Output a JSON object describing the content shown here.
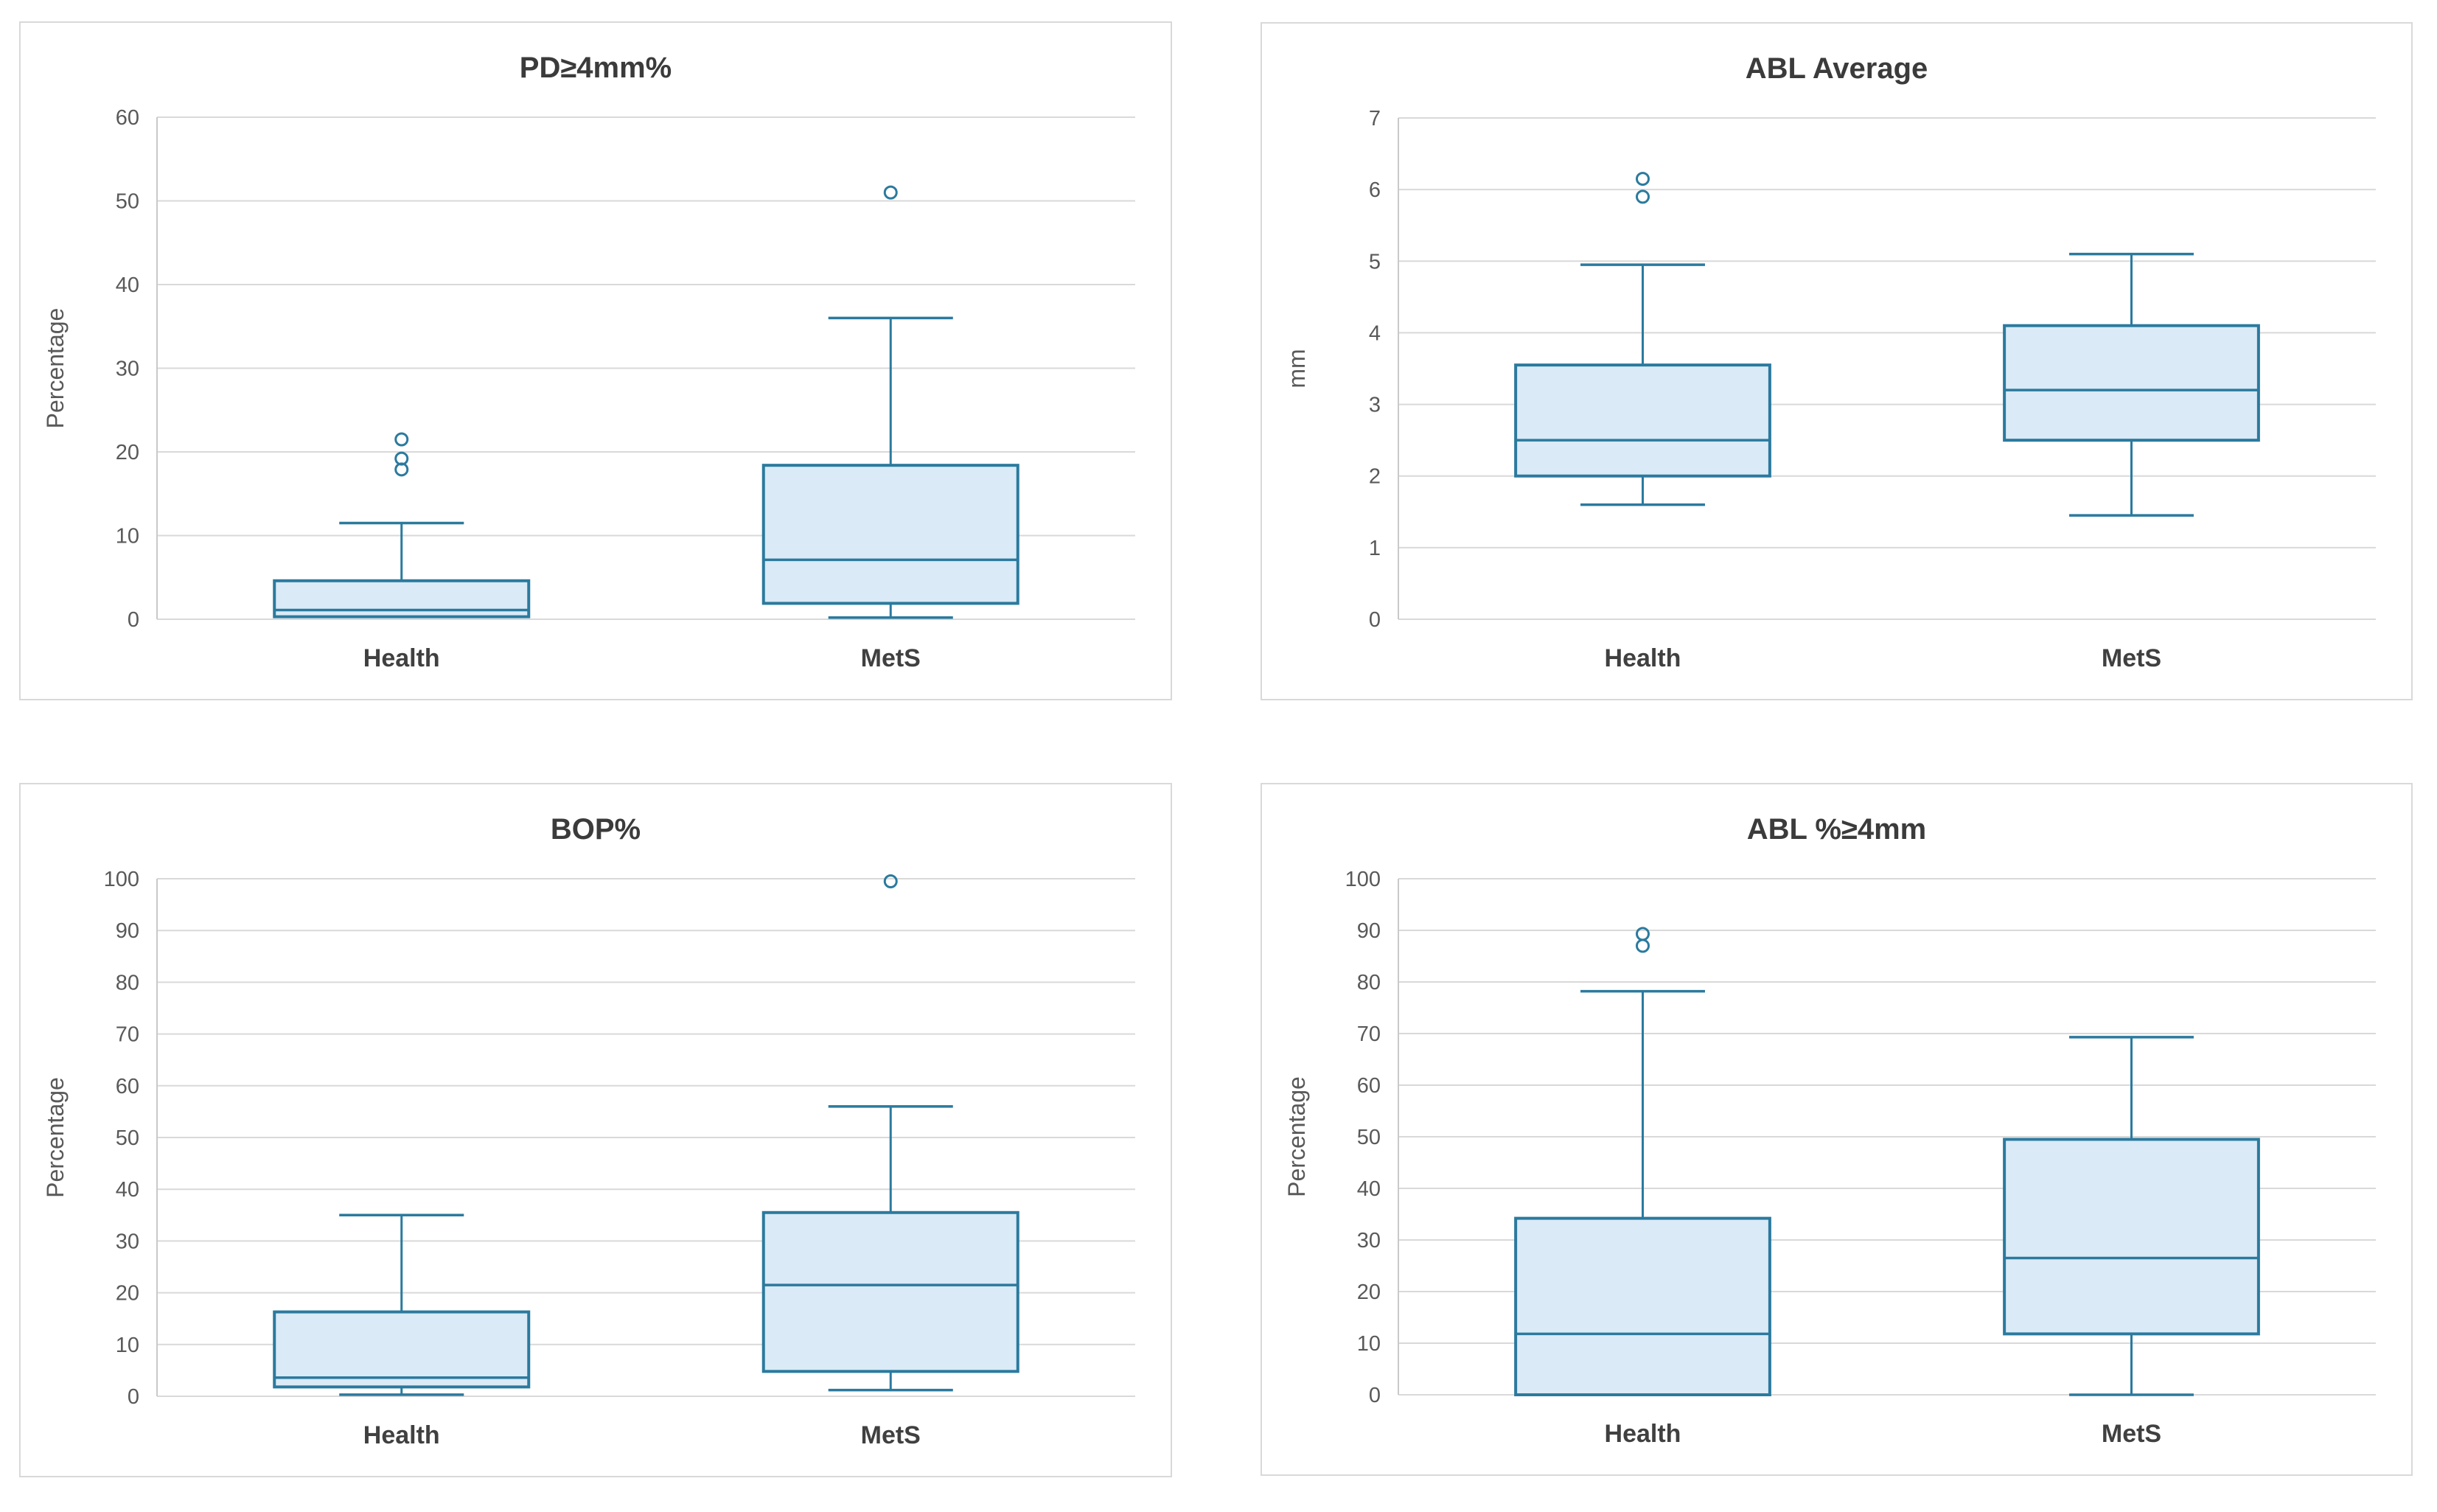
{
  "style": {
    "box_fill": "#daeaf6",
    "box_stroke": "#2b7a9e",
    "grid_color": "#d9d9d9",
    "axis_color": "#c9c9c9",
    "title_color": "#3b3b3b",
    "tick_color": "#595959",
    "category_color": "#404040",
    "background": "#ffffff"
  },
  "chart_data": [
    {
      "type": "box",
      "title": "PD≥4mm%",
      "ylabel": "Percentage",
      "xlabel": "",
      "ylim": [
        0,
        60
      ],
      "y_step": 10,
      "grid": true,
      "categories": [
        "Health",
        "MetS"
      ],
      "series": [
        {
          "category": "Health",
          "min": 0.3,
          "q1": 0.3,
          "median": 1.1,
          "q3": 4.6,
          "max": 11.5,
          "outliers": [
            17.9,
            19.2,
            21.5
          ]
        },
        {
          "category": "MetS",
          "min": 0.2,
          "q1": 1.9,
          "median": 7.1,
          "q3": 18.4,
          "max": 36.0,
          "outliers": [
            51.0
          ]
        }
      ]
    },
    {
      "type": "box",
      "title": "ABL Average",
      "ylabel": "mm",
      "xlabel": "",
      "ylim": [
        0,
        7
      ],
      "y_step": 1,
      "grid": true,
      "categories": [
        "Health",
        "MetS"
      ],
      "series": [
        {
          "category": "Health",
          "min": 1.6,
          "q1": 2.0,
          "median": 2.5,
          "q3": 3.55,
          "max": 4.95,
          "outliers": [
            5.9,
            6.15
          ]
        },
        {
          "category": "MetS",
          "min": 1.45,
          "q1": 2.5,
          "median": 3.2,
          "q3": 4.1,
          "max": 5.1,
          "outliers": []
        }
      ]
    },
    {
      "type": "box",
      "title": "BOP%",
      "ylabel": "Percentage",
      "xlabel": "",
      "ylim": [
        0,
        100
      ],
      "y_step": 10,
      "grid": true,
      "categories": [
        "Health",
        "MetS"
      ],
      "series": [
        {
          "category": "Health",
          "min": 0.3,
          "q1": 1.8,
          "median": 3.6,
          "q3": 16.3,
          "max": 35.0,
          "outliers": []
        },
        {
          "category": "MetS",
          "min": 1.2,
          "q1": 4.8,
          "median": 21.5,
          "q3": 35.5,
          "max": 56.0,
          "outliers": [
            99.5
          ]
        }
      ]
    },
    {
      "type": "box",
      "title": "ABL %≥4mm",
      "ylabel": "Percentage",
      "xlabel": "",
      "ylim": [
        0,
        100
      ],
      "y_step": 10,
      "grid": true,
      "categories": [
        "Health",
        "MetS"
      ],
      "series": [
        {
          "category": "Health",
          "min": 0.0,
          "q1": 0.0,
          "median": 11.8,
          "q3": 34.2,
          "max": 78.2,
          "outliers": [
            87.0,
            89.3
          ]
        },
        {
          "category": "MetS",
          "min": 0.0,
          "q1": 11.8,
          "median": 26.5,
          "q3": 49.5,
          "max": 69.3,
          "outliers": []
        }
      ]
    }
  ]
}
